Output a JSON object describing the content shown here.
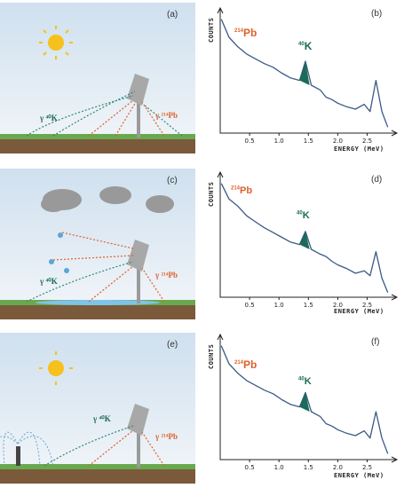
{
  "panels": [
    {
      "label": "(a)",
      "gamma_left": "γ ⁴⁰K",
      "gamma_right": "γ ²¹⁴Pb"
    },
    {
      "label": "(c)",
      "gamma_left": "γ ⁴⁰K",
      "gamma_right": "γ ²¹⁴Pb"
    },
    {
      "label": "(e)",
      "gamma_left": "γ ⁴⁰K",
      "gamma_right": "γ ²¹⁴Pb"
    }
  ],
  "chart_data": [
    {
      "type": "line",
      "label": "(b)",
      "ylabel": "COUNTS",
      "xlabel": "ENERGY (MeV)",
      "xticks": [
        "0.5",
        "1.0",
        "1.5",
        "2.0",
        "2.5"
      ],
      "xlim": [
        0,
        2.9
      ],
      "peaks": {
        "pb_sup": "214",
        "pb": "Pb",
        "k_sup": "40",
        "k": "K"
      },
      "x": [
        0.02,
        0.15,
        0.3,
        0.45,
        0.6,
        0.75,
        0.9,
        1.05,
        1.2,
        1.35,
        1.45,
        1.55,
        1.7,
        1.8,
        1.9,
        2.0,
        2.15,
        2.3,
        2.45,
        2.55,
        2.65,
        2.75,
        2.85
      ],
      "y": [
        95,
        80,
        72,
        66,
        62,
        58,
        55,
        50,
        46,
        44,
        60,
        40,
        36,
        30,
        28,
        25,
        22,
        20,
        24,
        18,
        44,
        18,
        5
      ]
    },
    {
      "type": "line",
      "label": "(d)",
      "ylabel": "COUNTS",
      "xlabel": "ENERGY (MeV)",
      "xticks": [
        "0.5",
        "1.0",
        "1.5",
        "2.0",
        "2.5"
      ],
      "xlim": [
        0,
        2.9
      ],
      "peaks": {
        "pb_sup": "214",
        "pb": "Pb",
        "k_sup": "40",
        "k": "K"
      },
      "x": [
        0.02,
        0.15,
        0.3,
        0.45,
        0.6,
        0.75,
        0.9,
        1.05,
        1.2,
        1.35,
        1.45,
        1.55,
        1.7,
        1.8,
        1.9,
        2.0,
        2.15,
        2.3,
        2.45,
        2.55,
        2.65,
        2.75,
        2.85
      ],
      "y": [
        95,
        82,
        76,
        68,
        63,
        58,
        54,
        50,
        46,
        44,
        55,
        40,
        36,
        34,
        30,
        27,
        24,
        20,
        22,
        18,
        38,
        16,
        4
      ]
    },
    {
      "type": "line",
      "label": "(f)",
      "ylabel": "COUNTS",
      "xlabel": "ENERGY (MeV)",
      "xticks": [
        "0.5",
        "1.0",
        "1.5",
        "2.0",
        "2.5"
      ],
      "xlim": [
        0,
        2.9
      ],
      "peaks": {
        "pb_sup": "214",
        "pb": "Pb",
        "k_sup": "40",
        "k": "K"
      },
      "x": [
        0.02,
        0.15,
        0.3,
        0.45,
        0.6,
        0.75,
        0.9,
        1.05,
        1.2,
        1.35,
        1.45,
        1.55,
        1.7,
        1.8,
        1.9,
        2.0,
        2.15,
        2.3,
        2.45,
        2.55,
        2.65,
        2.75,
        2.85
      ],
      "y": [
        95,
        80,
        72,
        66,
        62,
        58,
        55,
        50,
        46,
        44,
        56,
        40,
        36,
        30,
        28,
        25,
        22,
        20,
        24,
        18,
        40,
        18,
        5
      ]
    }
  ]
}
